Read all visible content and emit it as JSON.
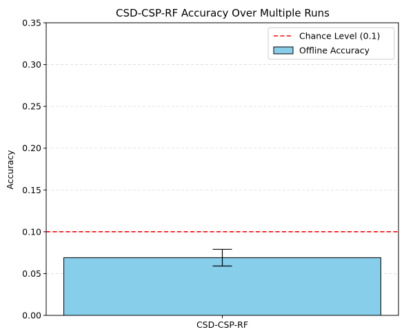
{
  "chart_data": {
    "type": "bar",
    "title": "CSD-CSP-RF Accuracy Over Multiple Runs",
    "xlabel": "",
    "ylabel": "Accuracy",
    "categories": [
      "CSD-CSP-RF"
    ],
    "series": [
      {
        "name": "Offline Accuracy",
        "values": [
          0.069
        ],
        "error": [
          0.01
        ],
        "color": "#87CEEB",
        "edgecolor": "#000000"
      }
    ],
    "reference_lines": [
      {
        "name": "Chance Level (0.1)",
        "y": 0.1,
        "color": "#FF0000",
        "style": "dashed"
      }
    ],
    "ylim": [
      0,
      0.35
    ],
    "yticks": [
      "0.00",
      "0.05",
      "0.10",
      "0.15",
      "0.20",
      "0.25",
      "0.30",
      "0.35"
    ],
    "grid": "y-dashed",
    "legend": "top-right"
  }
}
